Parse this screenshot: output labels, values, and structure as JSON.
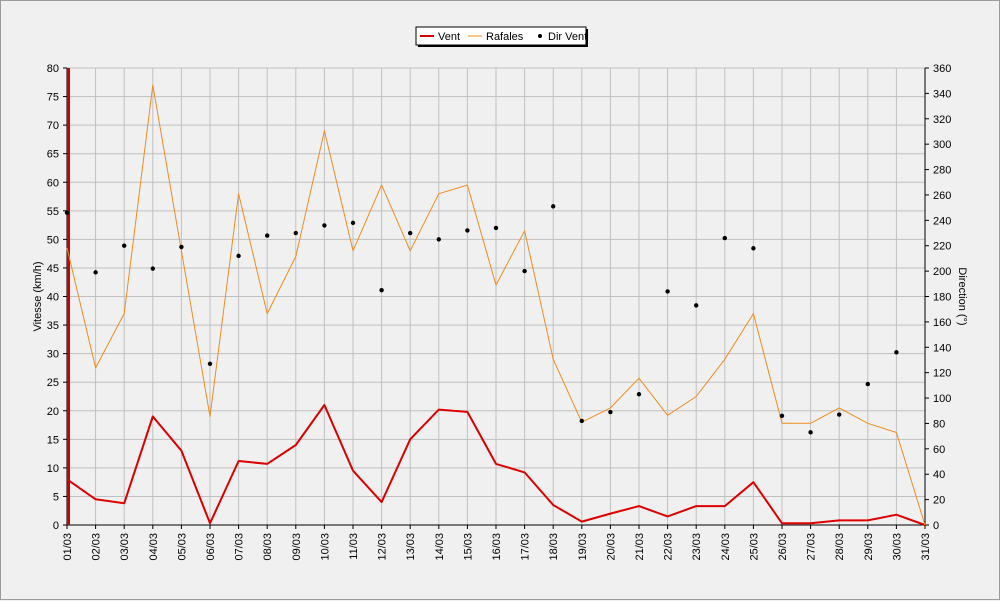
{
  "chart_data": {
    "type": "line",
    "title": "",
    "legend_position": "top-center",
    "grid": true,
    "colors": {
      "Vent": "#dd0000",
      "Rafales": "#f08c1e",
      "Dir Vent": "#000000",
      "grid": "#c0c0c0",
      "plot_bg": "#f0f0f0"
    },
    "x": [
      "01/03",
      "02/03",
      "03/03",
      "04/03",
      "05/03",
      "06/03",
      "07/03",
      "08/03",
      "09/03",
      "10/03",
      "11/03",
      "12/03",
      "13/03",
      "14/03",
      "15/03",
      "16/03",
      "17/03",
      "18/03",
      "19/03",
      "20/03",
      "21/03",
      "22/03",
      "23/03",
      "24/03",
      "25/03",
      "26/03",
      "27/03",
      "28/03",
      "29/03",
      "30/03",
      "31/03"
    ],
    "ylabel_left": "Vitesse (km/h)",
    "ylabel_right": "Direction (°)",
    "ylim_left": [
      0,
      80
    ],
    "ylim_right": [
      0,
      360
    ],
    "yticks_left": [
      0,
      5,
      10,
      15,
      20,
      25,
      30,
      35,
      40,
      45,
      50,
      55,
      60,
      65,
      70,
      75,
      80
    ],
    "yticks_right": [
      0,
      20,
      40,
      60,
      80,
      100,
      120,
      140,
      160,
      180,
      200,
      220,
      240,
      260,
      280,
      300,
      320,
      340,
      360
    ],
    "series": [
      {
        "name": "Vent",
        "axis": "left",
        "style": "line",
        "values": [
          8,
          4.5,
          3.8,
          19,
          13,
          0.3,
          11.2,
          10.7,
          14,
          21,
          9.5,
          4,
          15,
          20.2,
          19.8,
          10.7,
          9.2,
          3.5,
          0.6,
          2,
          3.3,
          1.5,
          3.3,
          3.3,
          7.5,
          0.3,
          0.3,
          0.8,
          0.8,
          1.8,
          0
        ]
      },
      {
        "name": "Rafales",
        "axis": "left",
        "style": "line",
        "values": [
          48.5,
          27.5,
          37,
          77,
          48,
          19,
          58,
          37,
          47,
          69,
          48,
          59.5,
          48,
          58,
          59.5,
          42,
          51.5,
          29,
          18,
          20.5,
          25.7,
          19.2,
          22.5,
          29,
          37,
          17.8,
          17.8,
          20.5,
          17.8,
          16.2,
          0
        ]
      },
      {
        "name": "Dir Vent",
        "axis": "right",
        "style": "scatter",
        "values": [
          246,
          199,
          220,
          202,
          219,
          127,
          212,
          228,
          230,
          236,
          238,
          185,
          230,
          225,
          232,
          234,
          200,
          251,
          82,
          89,
          103,
          184,
          173,
          226,
          218,
          86,
          73,
          87,
          111,
          136,
          null
        ]
      }
    ]
  }
}
